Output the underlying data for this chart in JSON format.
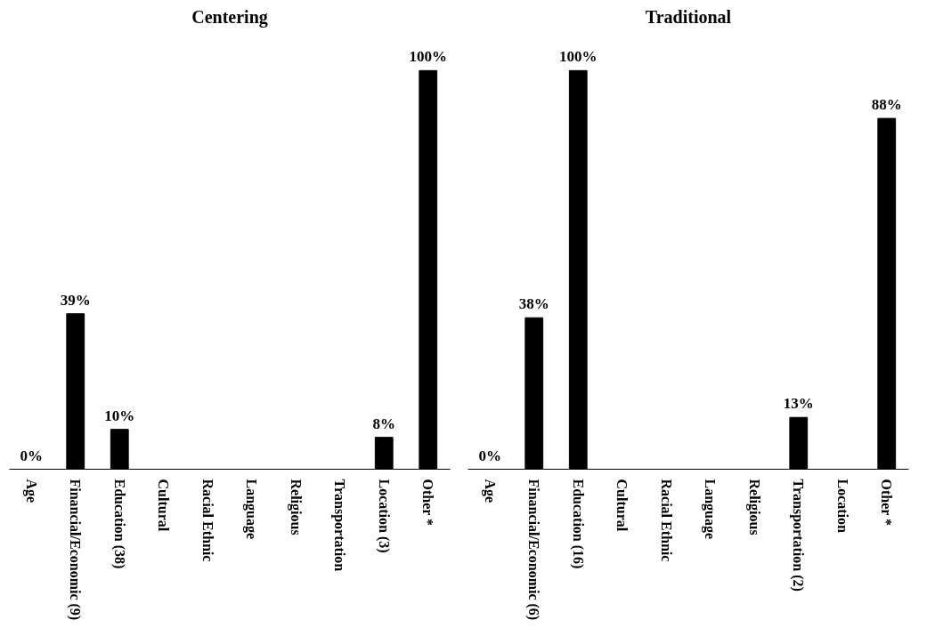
{
  "chart_data": [
    {
      "type": "bar",
      "title": "Centering",
      "categories": [
        "Age",
        "Financial/Economic (9)",
        "Education (38)",
        "Cultural",
        "Racial Ethnic",
        "Language",
        "Religious",
        "Transportation",
        "Location (3)",
        "Other *"
      ],
      "series": [
        {
          "color": "#000000",
          "values": [
            0,
            39,
            10,
            null,
            null,
            null,
            null,
            null,
            8,
            100
          ],
          "value_labels": [
            "0%",
            "39%",
            "10%",
            null,
            null,
            null,
            null,
            null,
            "8%",
            "100%"
          ]
        }
      ],
      "grid": false,
      "tick_labels": "x"
    },
    {
      "type": "bar",
      "title": "Traditional",
      "categories": [
        "Age",
        "Financial/Economic (6)",
        "Education (16)",
        "Cultural",
        "Racial Ethnic",
        "Language",
        "Religious",
        "Transportation (2)",
        "Location",
        "Other *"
      ],
      "series": [
        {
          "color": "#000000",
          "values": [
            0,
            38,
            100,
            null,
            null,
            null,
            null,
            13,
            null,
            88
          ],
          "value_labels": [
            "0%",
            "38%",
            "100%",
            null,
            null,
            null,
            null,
            "13%",
            null,
            "88%"
          ]
        }
      ],
      "grid": false,
      "tick_labels": "x"
    }
  ]
}
